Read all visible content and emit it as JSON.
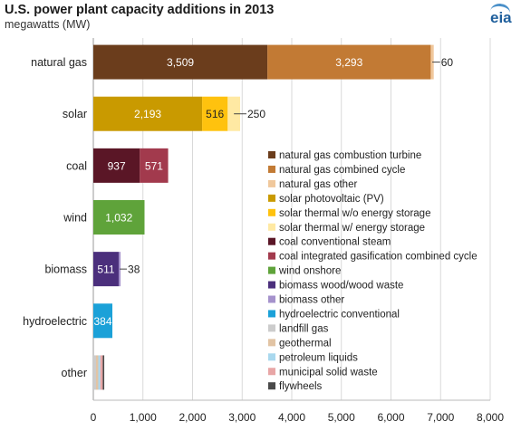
{
  "title": "U.S. power plant capacity additions in 2013",
  "subtitle": "megawatts (MW)",
  "logo_text": "eia",
  "colors": {
    "ng_ct": "#6b3d1c",
    "ng_cc": "#c27a34",
    "ng_other": "#f0c89c",
    "solar_pv": "#c99a00",
    "solar_th_no": "#ffc20e",
    "solar_th_w": "#ffe9a3",
    "coal_steam": "#5a1626",
    "coal_igcc": "#a23a4d",
    "wind": "#5fa33a",
    "bio_wood": "#4b2f7c",
    "bio_other": "#a592cc",
    "hydro": "#1ba1d8",
    "landfill": "#cccccc",
    "geothermal": "#e2c4a4",
    "petroleum": "#a9d8ee",
    "msw": "#e8a6a6",
    "flywheels": "#4a4a4a",
    "grid": "#d9d9d9"
  },
  "chart_data": {
    "type": "bar",
    "orientation": "horizontal",
    "stacked": true,
    "title": "U.S. power plant capacity additions in 2013",
    "subtitle": "megawatts (MW)",
    "xlim": [
      0,
      8000
    ],
    "x_ticks": [
      "0",
      "1,000",
      "2,000",
      "3,000",
      "4,000",
      "5,000",
      "6,000",
      "7,000",
      "8,000"
    ],
    "grid": "vertical",
    "legend_position": "right",
    "categories": [
      "natural gas",
      "solar",
      "coal",
      "wind",
      "biomass",
      "hydroelectric",
      "other"
    ],
    "segments": [
      [
        {
          "series": "natural gas combustion turbine",
          "value": 3509,
          "label": "3,509",
          "color_key": "ng_ct",
          "label_pos": "inside",
          "label_color": "#ffffff"
        },
        {
          "series": "natural gas combined cycle",
          "value": 3293,
          "label": "3,293",
          "color_key": "ng_cc",
          "label_pos": "inside",
          "label_color": "#ffffff"
        },
        {
          "series": "natural gas other",
          "value": 60,
          "label": "60",
          "color_key": "ng_other",
          "label_pos": "outside",
          "label_color": "#222222"
        }
      ],
      [
        {
          "series": "solar photovoltaic (PV)",
          "value": 2193,
          "label": "2,193",
          "color_key": "solar_pv",
          "label_pos": "inside",
          "label_color": "#ffffff"
        },
        {
          "series": "solar thermal w/o energy storage",
          "value": 516,
          "label": "516",
          "color_key": "solar_th_no",
          "label_pos": "inside",
          "label_color": "#222222"
        },
        {
          "series": "solar thermal w/ energy storage",
          "value": 250,
          "label": "250",
          "color_key": "solar_th_w",
          "label_pos": "outside",
          "label_color": "#222222"
        }
      ],
      [
        {
          "series": "coal conventional steam",
          "value": 937,
          "label": "937",
          "color_key": "coal_steam",
          "label_pos": "inside",
          "label_color": "#ffffff"
        },
        {
          "series": "coal integrated gasification combined cycle",
          "value": 571,
          "label": "571",
          "color_key": "coal_igcc",
          "label_pos": "inside",
          "label_color": "#ffffff"
        }
      ],
      [
        {
          "series": "wind onshore",
          "value": 1032,
          "label": "1,032",
          "color_key": "wind",
          "label_pos": "inside",
          "label_color": "#ffffff"
        }
      ],
      [
        {
          "series": "biomass wood/wood waste",
          "value": 511,
          "label": "511",
          "color_key": "bio_wood",
          "label_pos": "inside",
          "label_color": "#ffffff"
        },
        {
          "series": "biomass other",
          "value": 38,
          "label": "38",
          "color_key": "bio_other",
          "label_pos": "outside",
          "label_color": "#222222"
        }
      ],
      [
        {
          "series": "hydroelectric conventional",
          "value": 384,
          "label": "384",
          "color_key": "hydro",
          "label_pos": "inside",
          "label_color": "#ffffff"
        }
      ],
      [
        {
          "series": "landfill gas",
          "value": 55,
          "label": "",
          "color_key": "landfill"
        },
        {
          "series": "geothermal",
          "value": 45,
          "label": "",
          "color_key": "geothermal"
        },
        {
          "series": "petroleum liquids",
          "value": 40,
          "label": "",
          "color_key": "petroleum"
        },
        {
          "series": "municipal solid waste",
          "value": 50,
          "label": "",
          "color_key": "msw"
        },
        {
          "series": "flywheels",
          "value": 30,
          "label": "",
          "color_key": "flywheels"
        }
      ]
    ],
    "legend": [
      {
        "label": "natural gas combustion turbine",
        "color_key": "ng_ct"
      },
      {
        "label": "natural gas combined cycle",
        "color_key": "ng_cc"
      },
      {
        "label": "natural gas other",
        "color_key": "ng_other"
      },
      {
        "label": "solar photovoltaic (PV)",
        "color_key": "solar_pv"
      },
      {
        "label": "solar thermal w/o energy storage",
        "color_key": "solar_th_no"
      },
      {
        "label": "solar thermal w/ energy storage",
        "color_key": "solar_th_w"
      },
      {
        "label": "coal conventional steam",
        "color_key": "coal_steam"
      },
      {
        "label": "coal integrated gasification combined cycle",
        "color_key": "coal_igcc"
      },
      {
        "label": "wind onshore",
        "color_key": "wind"
      },
      {
        "label": "biomass wood/wood waste",
        "color_key": "bio_wood"
      },
      {
        "label": "biomass other",
        "color_key": "bio_other"
      },
      {
        "label": "hydroelectric conventional",
        "color_key": "hydro"
      },
      {
        "label": "landfill gas",
        "color_key": "landfill"
      },
      {
        "label": "geothermal",
        "color_key": "geothermal"
      },
      {
        "label": "petroleum liquids",
        "color_key": "petroleum"
      },
      {
        "label": "municipal solid waste",
        "color_key": "msw"
      },
      {
        "label": "flywheels",
        "color_key": "flywheels"
      }
    ]
  }
}
